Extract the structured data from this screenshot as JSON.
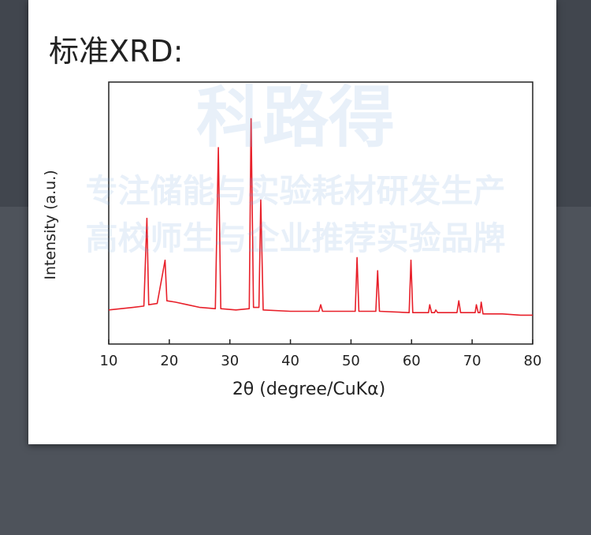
{
  "chart_data": {
    "type": "line",
    "title": "标准XRD:",
    "xlabel": "2θ (degree/CuKα)",
    "ylabel": "Intensity (a.u.)",
    "xlim": [
      10,
      80
    ],
    "xticks": [
      10,
      20,
      30,
      40,
      50,
      60,
      70,
      80
    ],
    "ylim": [
      0,
      100
    ],
    "series": [
      {
        "color": "#e8202a",
        "x": [
          10,
          12,
          14,
          15.8,
          16.3,
          16.6,
          18,
          19.3,
          19.6,
          21,
          23,
          25,
          27.6,
          28.1,
          28.5,
          31,
          33.2,
          33.5,
          33.9,
          34.8,
          35.1,
          35.5,
          40,
          44.7,
          45,
          45.3,
          50.7,
          51,
          51.3,
          54.1,
          54.4,
          54.7,
          59.6,
          59.9,
          60.2,
          62.8,
          63,
          63.3,
          63.8,
          64,
          64.3,
          67.5,
          67.8,
          68.1,
          70.5,
          70.7,
          71,
          71.3,
          71.5,
          71.8,
          75,
          78,
          80
        ],
        "values": [
          13,
          13.5,
          14,
          14.5,
          48,
          15,
          15.5,
          32,
          16.5,
          16,
          15,
          14,
          13.5,
          75,
          13.5,
          13,
          13.5,
          86,
          14,
          14,
          55,
          13,
          12.5,
          12.5,
          15,
          12.5,
          12.5,
          33,
          12.5,
          12.5,
          28,
          12.5,
          12,
          32,
          12,
          12,
          15,
          12,
          12,
          13,
          12,
          12,
          16.5,
          12,
          12,
          15,
          12,
          12,
          16,
          11.5,
          11.5,
          11,
          11
        ]
      }
    ]
  },
  "watermark": [
    "科路得",
    "专注储能与实验耗材研发生产",
    "高校师生与企业推荐实验品牌"
  ]
}
